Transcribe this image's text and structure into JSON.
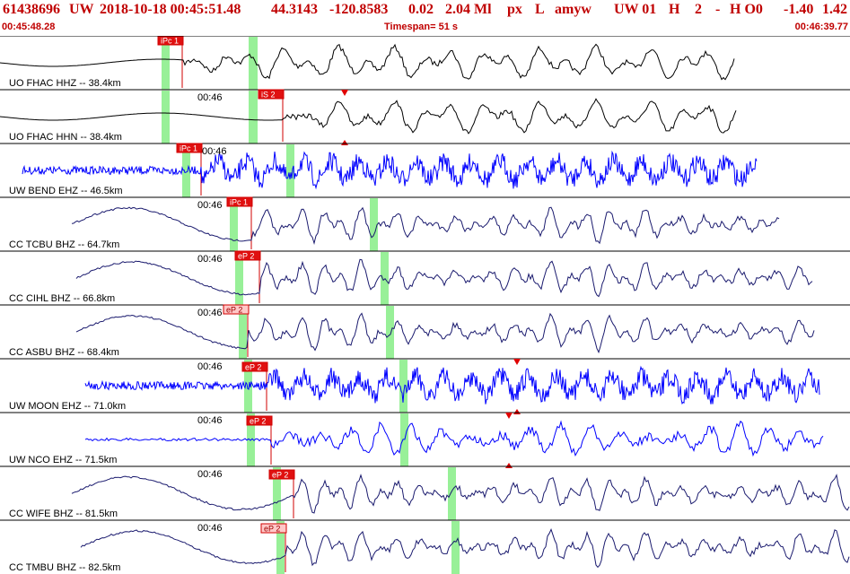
{
  "header": {
    "event_id": "61438696",
    "network": "UW",
    "origin_datetime": "2018-10-18 00:45:51.48",
    "latitude": "44.3143",
    "longitude": "-120.8583",
    "depth": "0.02",
    "magnitude": "2.04 Ml",
    "flags_1": "px",
    "flags_2": "L",
    "operator": "amyw",
    "flags_3": "UW 01",
    "flags_4": "H",
    "flags_5": "2",
    "flags_6": "-",
    "flags_7": "H O0",
    "residual_1": "-1.40",
    "residual_2": "1.42"
  },
  "time_bar": {
    "start": "00:45:48.28",
    "timespan": "Timespan=  51 s",
    "end": "00:46:39.77"
  },
  "colors": {
    "header": "#c00000",
    "pick_fill": "#e01010",
    "pick_line": "#d00000",
    "pick_box_light": "#ffc8c8",
    "window_green": "#98f098",
    "trace_black": "#000000",
    "trace_navy": "#1a1a6e",
    "trace_blue": "#0000ff"
  },
  "channels": [
    {
      "label": "UO FHAC HHZ -- 38.4km",
      "time_mark": "",
      "pick": "iPc 1",
      "pick_style": "solid",
      "color": "black",
      "mode": "lowfreq"
    },
    {
      "label": "UO FHAC HHN -- 38.4km",
      "time_mark": "00:46",
      "pick": "iS 2",
      "pick_style": "solid",
      "color": "black",
      "mode": "lowfreq"
    },
    {
      "label": "UW BEND EHZ -- 46.5km",
      "time_mark": "00:46",
      "pick": "iPc 1",
      "pick_style": "solid",
      "color": "blue",
      "mode": "noise"
    },
    {
      "label": "CC TCBU BHZ -- 64.7km",
      "time_mark": "00:46",
      "pick": "iPc 1",
      "pick_style": "solid",
      "color": "navy",
      "mode": "swell"
    },
    {
      "label": "CC CIHL BHZ -- 66.8km",
      "time_mark": "00:46",
      "pick": "eP 2",
      "pick_style": "solid",
      "color": "navy",
      "mode": "swell"
    },
    {
      "label": "CC ASBU BHZ -- 68.4km",
      "time_mark": "00:46",
      "pick": "eP 2",
      "pick_style": "light",
      "color": "navy",
      "mode": "swell"
    },
    {
      "label": "UW MOON EHZ -- 71.0km",
      "time_mark": "00:46",
      "pick": "eP 2",
      "pick_style": "solid",
      "color": "blue",
      "mode": "noise"
    },
    {
      "label": "UW NCO EHZ -- 71.5km",
      "time_mark": "00:46",
      "pick": "eP 2",
      "pick_style": "solid",
      "color": "blue",
      "mode": "quiet"
    },
    {
      "label": "CC WIFE BHZ -- 81.5km",
      "time_mark": "00:46",
      "pick": "eP 2",
      "pick_style": "solid",
      "color": "navy",
      "mode": "swell"
    },
    {
      "label": "CC TMBU BHZ -- 82.5km",
      "time_mark": "00:46",
      "pick": "eP 2",
      "pick_style": "light",
      "color": "navy",
      "mode": "swell"
    }
  ]
}
